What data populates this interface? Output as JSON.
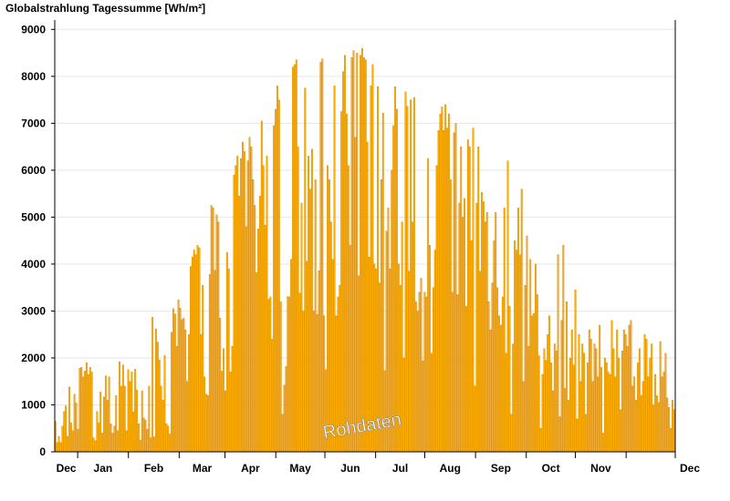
{
  "chart_data": {
    "type": "bar",
    "title": "Globalstrahlung Tagessumme [Wh/m²]",
    "watermark": "Rohdaten",
    "xlabel": "",
    "ylabel": "",
    "ylim": [
      0,
      9200
    ],
    "y_ticks": [
      "0",
      "1000",
      "2000",
      "3000",
      "4000",
      "5000",
      "6000",
      "7000",
      "8000",
      "9000"
    ],
    "x_ticks": [
      "Dec",
      "Jan",
      "Feb",
      "Mar",
      "Apr",
      "May",
      "Jun",
      "Jul",
      "Aug",
      "Sep",
      "Oct",
      "Nov",
      "Dec"
    ],
    "x_start": "2017-11-17",
    "x_end": "2018-12-01",
    "grid": true,
    "bar_color": "#FFB000",
    "bar_edge_color": "#C07000",
    "series": [
      {
        "values": [
          650,
          200,
          330,
          200,
          550,
          860,
          980,
          330,
          1380,
          620,
          450,
          1230,
          1040,
          480,
          1780,
          1800,
          1600,
          1720,
          1900,
          1650,
          1800,
          1700,
          300,
          240,
          860,
          620,
          1280,
          400,
          1170,
          1620,
          1100,
          1600,
          600,
          400,
          550,
          1200,
          450,
          1920,
          1400,
          1850,
          1400,
          450,
          1750,
          1500,
          1700,
          850,
          1760,
          1320,
          600,
          250,
          1300,
          720,
          680,
          480,
          1400,
          300,
          2870,
          320,
          2620,
          2340,
          1960,
          1400,
          1100,
          2050,
          600,
          550,
          380,
          2550,
          3050,
          2940,
          2250,
          3240,
          3060,
          2820,
          2850,
          2600,
          1500,
          2500,
          3950,
          4150,
          4300,
          4200,
          4400,
          4350,
          2500,
          3550,
          1600,
          1230,
          1200,
          3780,
          5250,
          5200,
          3870,
          5050,
          4900,
          2850,
          1720,
          2200,
          1300,
          4250,
          3900,
          1700,
          2250,
          5900,
          6100,
          6300,
          5450,
          6250,
          6600,
          6400,
          4800,
          6200,
          6700,
          6500,
          5800,
          5250,
          3820,
          4750,
          5450,
          7050,
          6100,
          4830,
          6300,
          3250,
          3300,
          2400,
          6950,
          7300,
          7800,
          7500,
          3200,
          800,
          1420,
          1820,
          3310,
          3300,
          4100,
          8200,
          8250,
          8350,
          6500,
          3380,
          5300,
          3000,
          7750,
          4060,
          6300,
          5600,
          6450,
          3000,
          5800,
          2930,
          3860,
          8300,
          8370,
          2900,
          1750,
          6100,
          5800,
          4900,
          4100,
          7800,
          2900,
          3300,
          3550,
          7250,
          8100,
          8450,
          7200,
          6100,
          4400,
          8400,
          8550,
          6700,
          8500,
          3750,
          8450,
          8600,
          8400,
          8350,
          6600,
          4150,
          7800,
          8250,
          4000,
          3900,
          7780,
          3600,
          5800,
          7220,
          1730,
          4700,
          5200,
          3900,
          6000,
          6950,
          7780,
          7300,
          4000,
          3550,
          4900,
          2000,
          7670,
          7360,
          3850,
          7500,
          4900,
          7550,
          3200,
          3000,
          3400,
          3700,
          1940,
          3400,
          3300,
          6250,
          4400,
          2100,
          3500,
          4300,
          6100,
          6850,
          7200,
          7350,
          6850,
          7400,
          6900,
          7200,
          5800,
          3400,
          6800,
          7000,
          3350,
          5300,
          6500,
          5000,
          5400,
          3100,
          6650,
          6500,
          4500,
          6900,
          1400,
          5300,
          6500,
          3850,
          5530,
          5330,
          4900,
          5100,
          3200,
          2600,
          3600,
          4500,
          5100,
          3500,
          2900,
          2700,
          3300,
          5200,
          2100,
          6200,
          3100,
          800,
          2300,
          4500,
          4300,
          5200,
          4200,
          5600,
          1500,
          3550,
          4600,
          2250,
          4100,
          2900,
          2950,
          4000,
          3350,
          2050,
          500,
          1650,
          2200,
          1950,
          2500,
          2900,
          1900,
          1300,
          2300,
          2150,
          4200,
          750,
          2800,
          4400,
          1350,
          3200,
          1100,
          2000,
          2600,
          1850,
          3450,
          700,
          2500,
          1500,
          2300,
          2100,
          800,
          1900,
          2600,
          2400,
          1500,
          2300,
          2200,
          1600,
          2700,
          1800,
          400,
          2000,
          1900,
          1700,
          1650,
          2800,
          2200,
          1600,
          2600,
          2000,
          900,
          2150,
          2600,
          2500,
          2250,
          2700,
          2800,
          1400,
          1600,
          1100,
          1900,
          2200,
          1200,
          1500,
          2500,
          2400,
          1600,
          2000,
          2300,
          1000,
          1650,
          1200,
          1050,
          2350,
          1600,
          1700,
          2100,
          1150,
          950,
          500,
          1100,
          900
        ]
      }
    ]
  }
}
